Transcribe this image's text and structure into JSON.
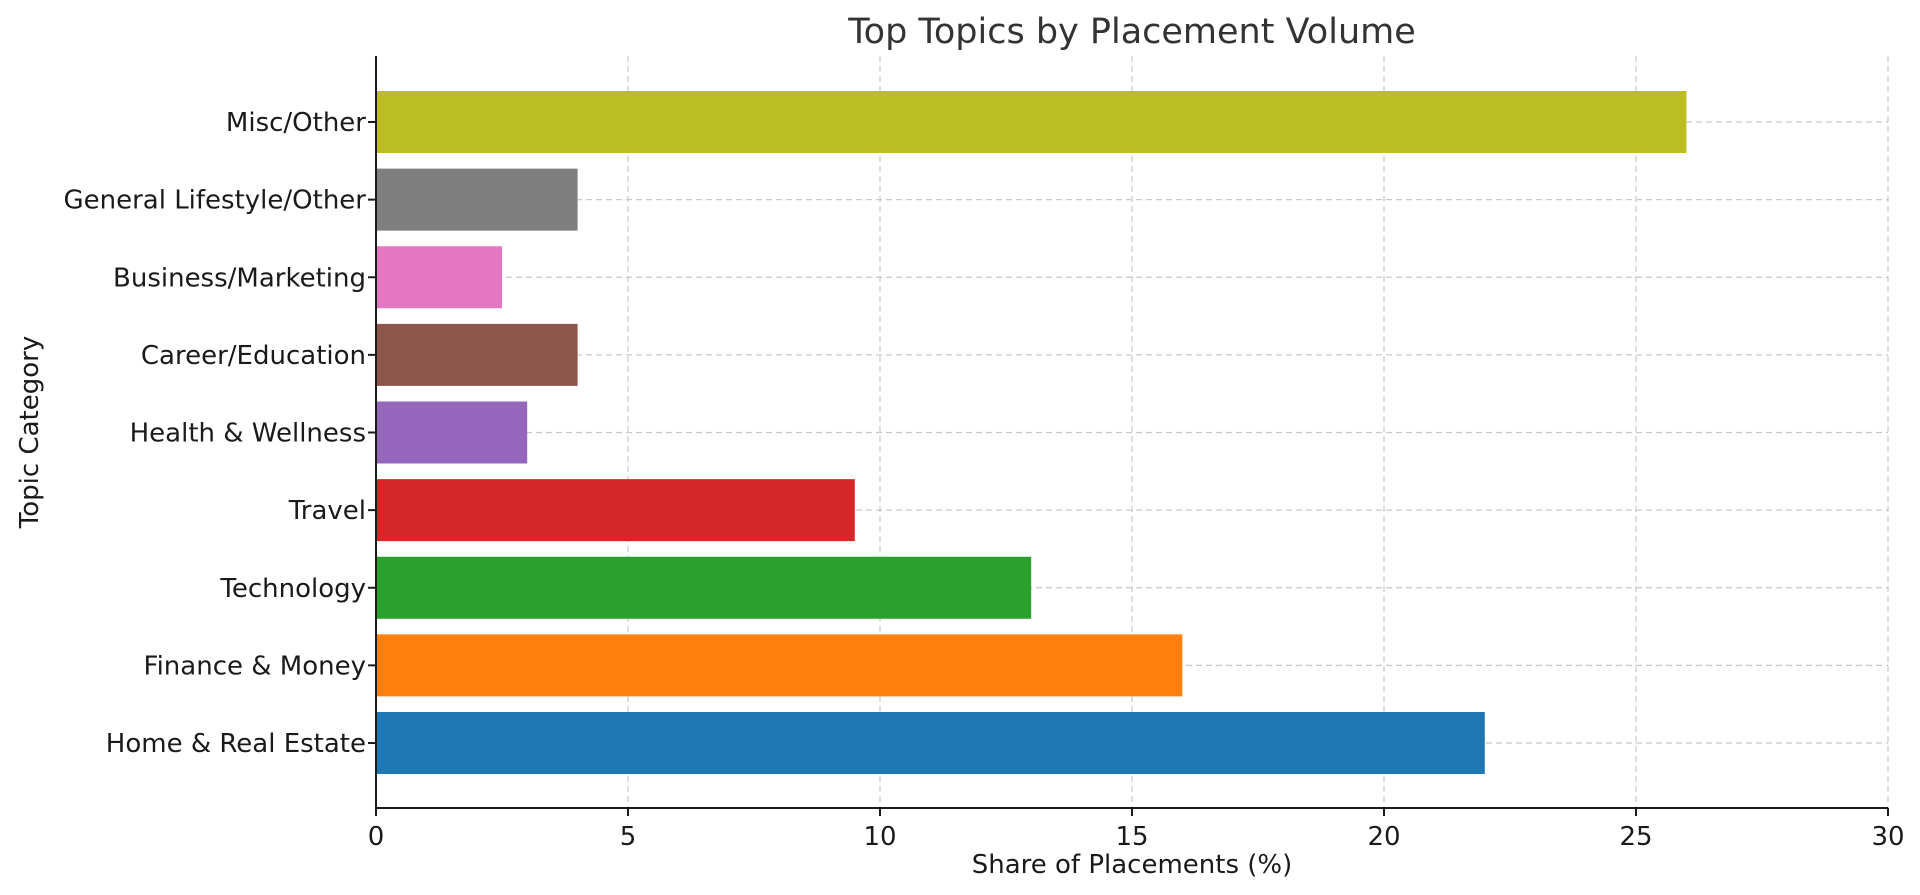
{
  "chart_data": {
    "type": "bar",
    "orientation": "horizontal",
    "title": "Top Topics by Placement Volume",
    "xlabel": "Share of Placements (%)",
    "ylabel": "Topic Category",
    "xlim": [
      0,
      30
    ],
    "xticks": [
      0,
      5,
      10,
      15,
      20,
      25,
      30
    ],
    "grid": true,
    "categories": [
      "Home & Real Estate",
      "Finance & Money",
      "Technology",
      "Travel",
      "Health & Wellness",
      "Career/Education",
      "Business/Marketing",
      "General Lifestyle/Other",
      "Misc/Other"
    ],
    "values": [
      22,
      16,
      13,
      9.5,
      3,
      4,
      2.5,
      4,
      26
    ],
    "colors": [
      "#1f77b4",
      "#ff7f0e",
      "#2ca02c",
      "#d62728",
      "#9467bd",
      "#8c564b",
      "#e377c2",
      "#7f7f7f",
      "#bcbd22"
    ]
  }
}
